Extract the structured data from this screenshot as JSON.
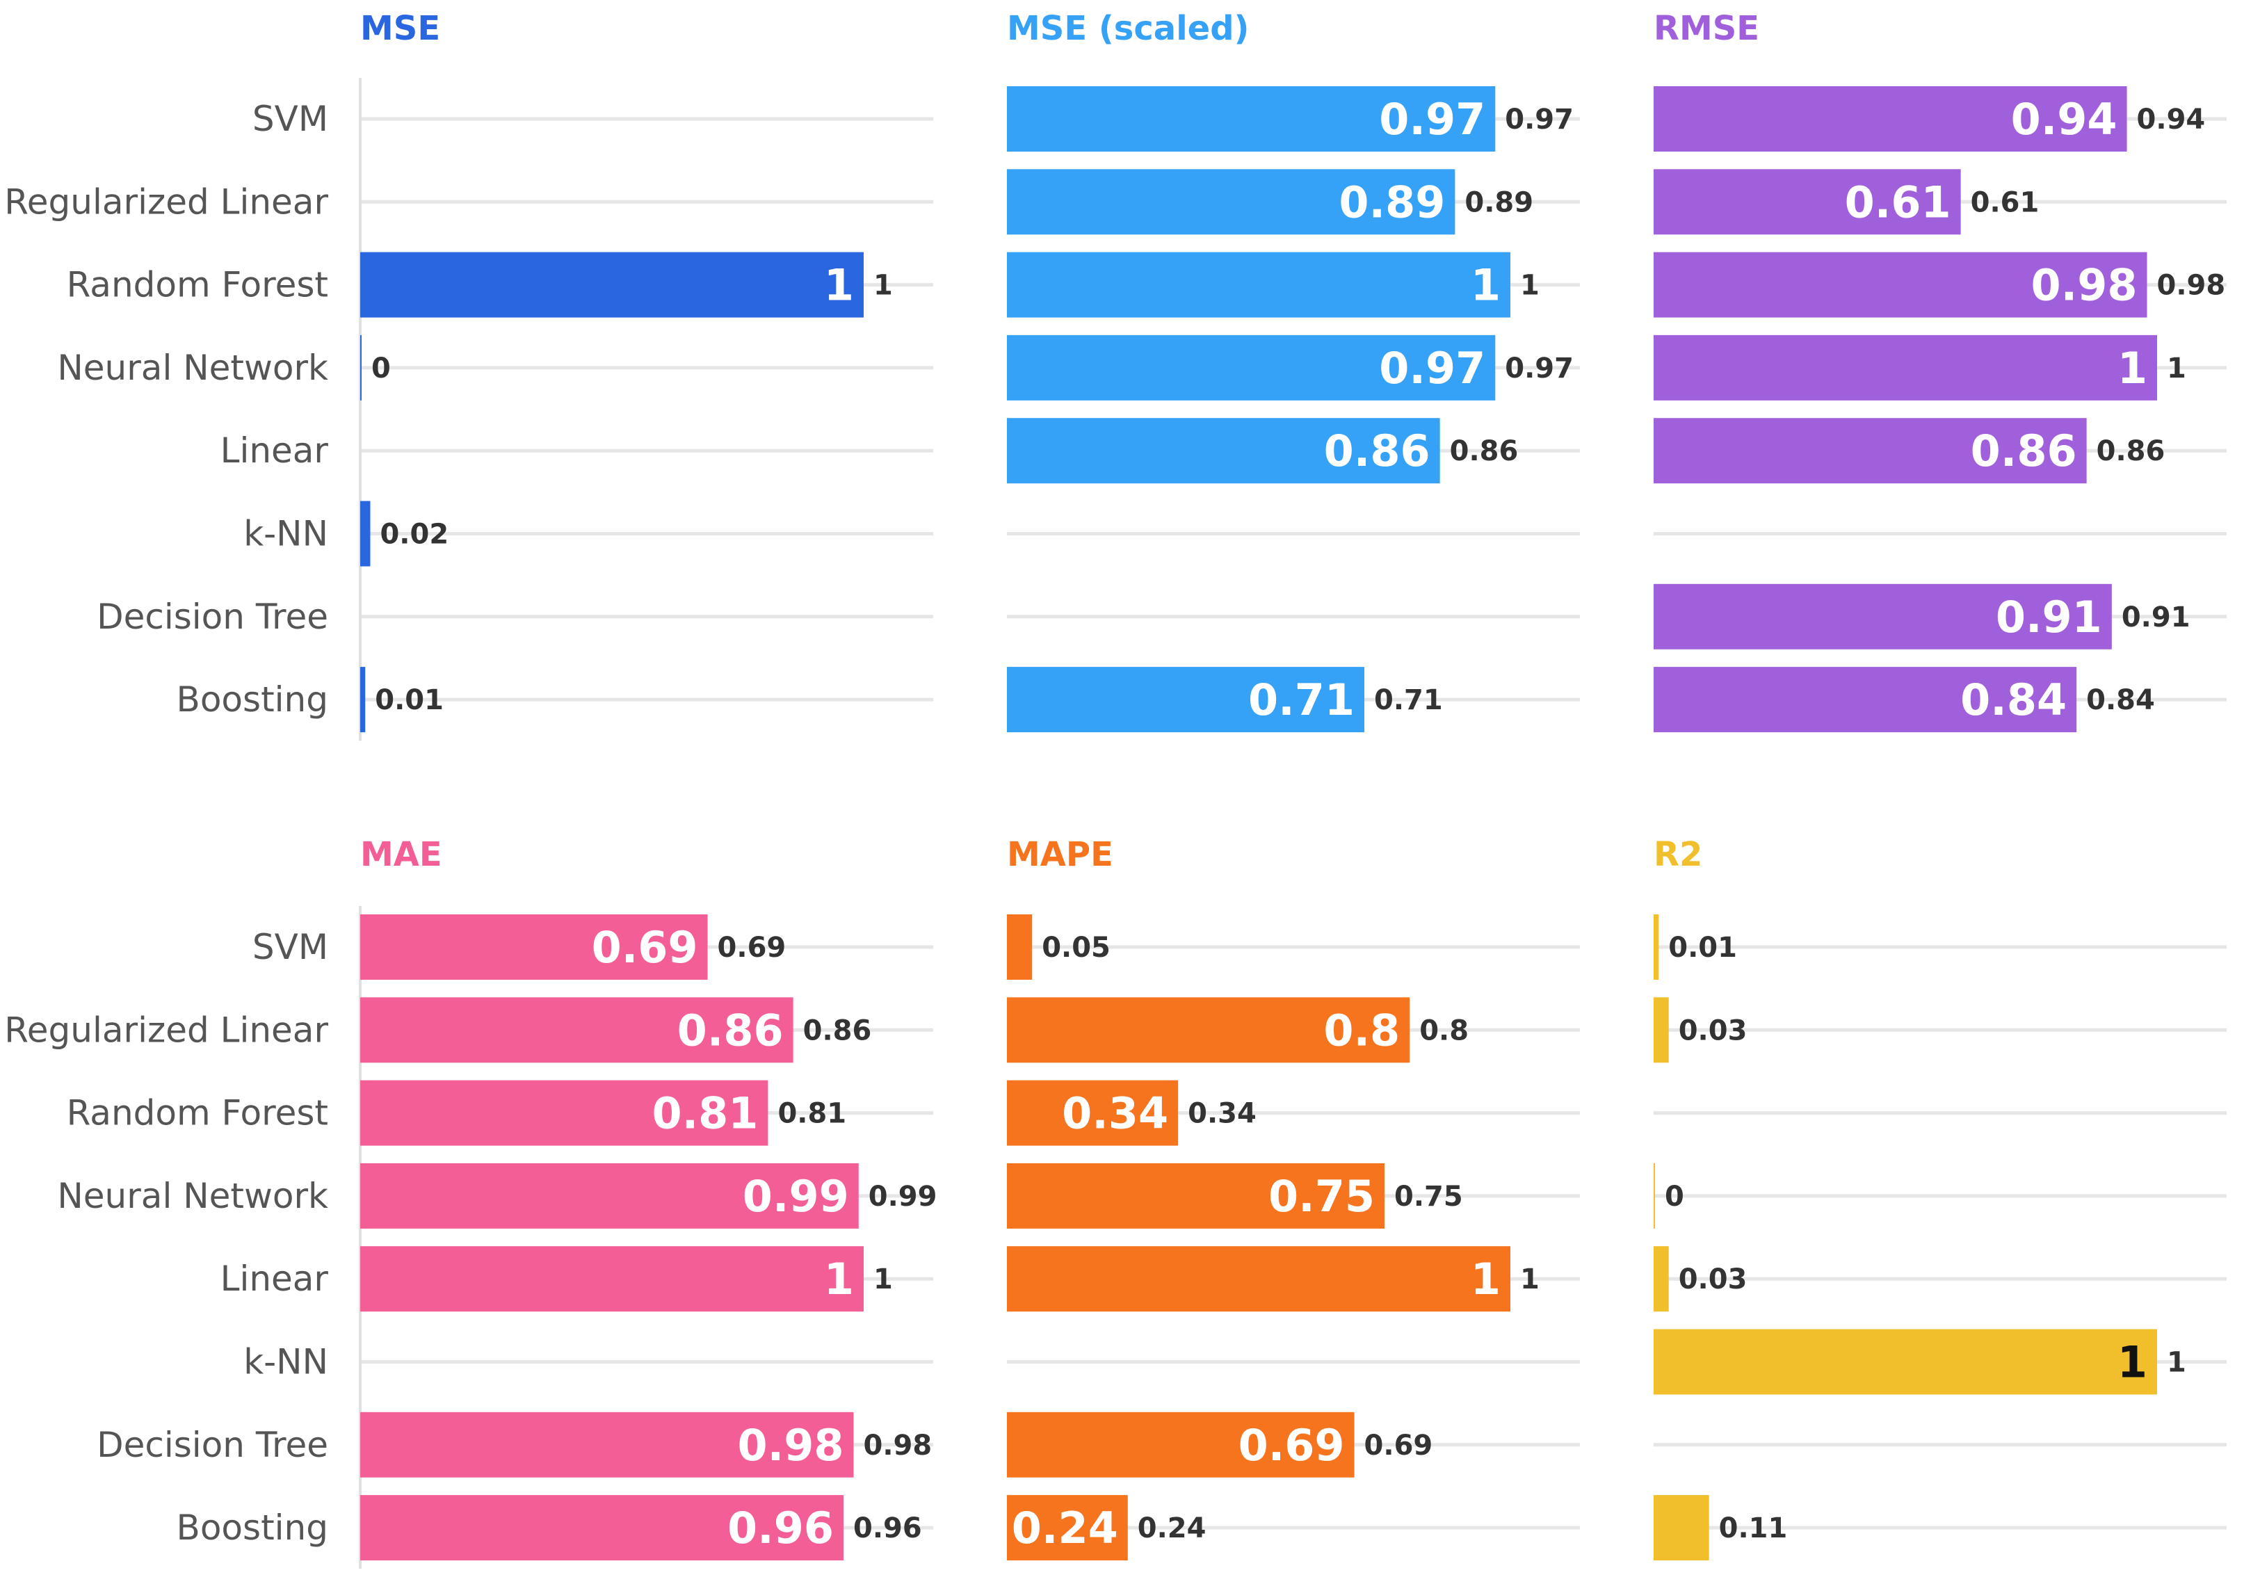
{
  "chart_data": [
    {
      "type": "bar",
      "orientation": "horizontal",
      "title": "MSE",
      "color": "#2966e0",
      "inside_label_color": "#ffffff",
      "categories": [
        "SVM",
        "Regularized Linear",
        "Random Forest",
        "Neural Network",
        "Linear",
        "k-NN",
        "Decision Tree",
        "Boosting"
      ],
      "values": [
        null,
        null,
        1,
        0,
        null,
        0.02,
        null,
        0.01
      ],
      "labels": [
        "",
        "",
        "1",
        "0",
        "",
        "0.02",
        "",
        "0.01"
      ],
      "xlim": [
        0,
        1
      ]
    },
    {
      "type": "bar",
      "orientation": "horizontal",
      "title": "MSE (scaled)",
      "color": "#35a1f7",
      "inside_label_color": "#ffffff",
      "categories": [
        "SVM",
        "Regularized Linear",
        "Random Forest",
        "Neural Network",
        "Linear",
        "k-NN",
        "Decision Tree",
        "Boosting"
      ],
      "values": [
        0.97,
        0.89,
        1,
        0.97,
        0.86,
        null,
        null,
        0.71
      ],
      "labels": [
        "0.97",
        "0.89",
        "1",
        "0.97",
        "0.86",
        "",
        "",
        "0.71"
      ],
      "xlim": [
        0,
        1
      ]
    },
    {
      "type": "bar",
      "orientation": "horizontal",
      "title": "RMSE",
      "color": "#a160db",
      "inside_label_color": "#ffffff",
      "categories": [
        "SVM",
        "Regularized Linear",
        "Random Forest",
        "Neural Network",
        "Linear",
        "k-NN",
        "Decision Tree",
        "Boosting"
      ],
      "values": [
        0.94,
        0.61,
        0.98,
        1,
        0.86,
        null,
        0.91,
        0.84
      ],
      "labels": [
        "0.94",
        "0.61",
        "0.98",
        "1",
        "0.86",
        "",
        "0.91",
        "0.84"
      ],
      "xlim": [
        0,
        1
      ]
    },
    {
      "type": "bar",
      "orientation": "horizontal",
      "title": "MAE",
      "color": "#f45e96",
      "inside_label_color": "#ffffff",
      "categories": [
        "SVM",
        "Regularized Linear",
        "Random Forest",
        "Neural Network",
        "Linear",
        "k-NN",
        "Decision Tree",
        "Boosting"
      ],
      "values": [
        0.69,
        0.86,
        0.81,
        0.99,
        1,
        null,
        0.98,
        0.96
      ],
      "labels": [
        "0.69",
        "0.86",
        "0.81",
        "0.99",
        "1",
        "",
        "0.98",
        "0.96"
      ],
      "xlim": [
        0,
        1
      ]
    },
    {
      "type": "bar",
      "orientation": "horizontal",
      "title": "MAPE",
      "color": "#f7741f",
      "inside_label_color": "#ffffff",
      "categories": [
        "SVM",
        "Regularized Linear",
        "Random Forest",
        "Neural Network",
        "Linear",
        "k-NN",
        "Decision Tree",
        "Boosting"
      ],
      "values": [
        0.05,
        0.8,
        0.34,
        0.75,
        1,
        null,
        0.69,
        0.24
      ],
      "labels": [
        "0.05",
        "0.8",
        "0.34",
        "0.75",
        "1",
        "",
        "0.69",
        "0.24"
      ],
      "xlim": [
        0,
        1
      ]
    },
    {
      "type": "bar",
      "orientation": "horizontal",
      "title": "R2",
      "color": "#f0bf2b",
      "inside_label_color": "#111111",
      "categories": [
        "SVM",
        "Regularized Linear",
        "Random Forest",
        "Neural Network",
        "Linear",
        "k-NN",
        "Decision Tree",
        "Boosting"
      ],
      "values": [
        0.01,
        0.03,
        null,
        0,
        0.03,
        1,
        null,
        0.11
      ],
      "labels": [
        "0.01",
        "0.03",
        "",
        "0",
        "0.03",
        "1",
        "",
        "0.11"
      ],
      "xlim": [
        0,
        1
      ]
    }
  ]
}
